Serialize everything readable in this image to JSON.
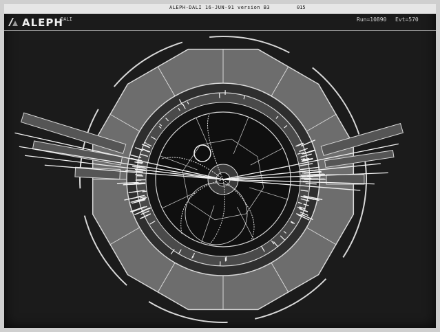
{
  "window": {
    "title": "ALEPH-DALI 16-JUN-91 version B3",
    "title_extra": "015"
  },
  "header": {
    "brand": "ALEPH",
    "mode": "DALI",
    "run": "Run=10890",
    "evt": "Evt=570"
  },
  "icons": {
    "logo": "aleph-logo-icon"
  },
  "colors": {
    "screen_bg": "#1b1b1b",
    "calorimeter_fill": "#6d6d6d",
    "detector_line": "#d8d8d8",
    "track": "#f2f2f2"
  }
}
